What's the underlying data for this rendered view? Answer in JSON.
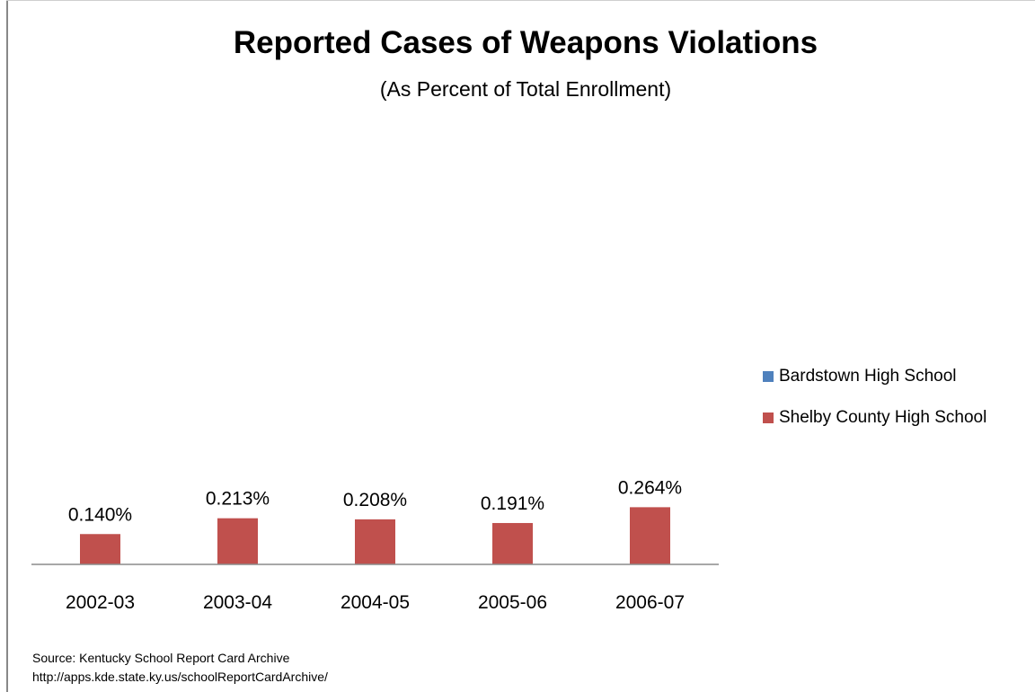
{
  "chart_data": {
    "type": "bar",
    "title": "Reported Cases of Weapons Violations",
    "subtitle": "(As Percent of Total Enrollment)",
    "categories": [
      "2002-03",
      "2003-04",
      "2004-05",
      "2005-06",
      "2006-07"
    ],
    "series": [
      {
        "name": "Bardstown High School",
        "color": "#4f81bd",
        "values": [
          null,
          null,
          null,
          null,
          null
        ],
        "labels": [
          "",
          "",
          "",
          "",
          ""
        ]
      },
      {
        "name": "Shelby County High School",
        "color": "#c0504d",
        "values": [
          0.14,
          0.213,
          0.208,
          0.191,
          0.264
        ],
        "labels": [
          "0.140%",
          "0.213%",
          "0.208%",
          "0.191%",
          "0.264%"
        ]
      }
    ],
    "xlabel": "",
    "ylabel": "",
    "grid": false,
    "legend_position": "right",
    "source_lines": [
      "Source: Kentucky School Report Card Archive",
      "http://apps.kde.state.ky.us/schoolReportCardArchive/"
    ]
  }
}
